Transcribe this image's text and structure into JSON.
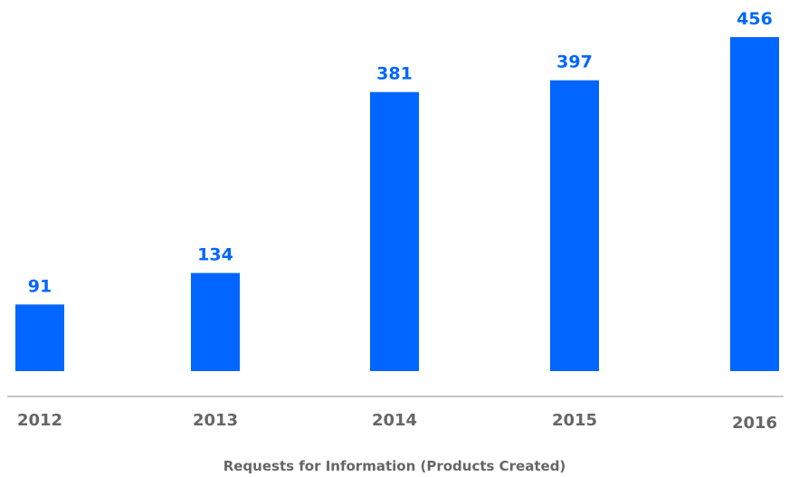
{
  "chart_data": {
    "type": "bar",
    "categories": [
      "2012",
      "2013",
      "2014",
      "2015",
      "2016"
    ],
    "values": [
      91,
      134,
      381,
      397,
      456
    ],
    "title": "",
    "xlabel": "Requests for Information (Products Created)",
    "ylabel": "",
    "ylim": [
      0,
      456
    ],
    "grid": false,
    "legend": "none",
    "data_labels": true
  },
  "colors": {
    "bar": "#0066ff",
    "value_label": "#0066ff",
    "tick_label": "#666666",
    "axis_title": "#666666",
    "axis_line": "#c8c8c8"
  }
}
